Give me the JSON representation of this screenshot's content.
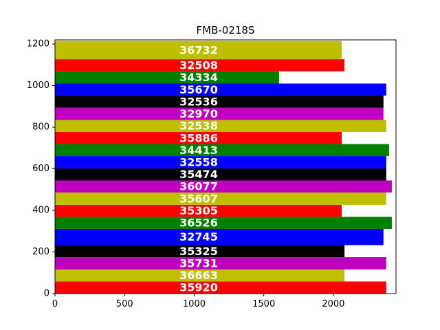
{
  "chart_data": {
    "type": "bar",
    "orientation": "horizontal",
    "title": "FMB-0218S",
    "xlabel": "",
    "ylabel": "",
    "xlim": [
      0,
      2450
    ],
    "ylim": [
      0,
      1220
    ],
    "xticks": [
      0,
      500,
      1000,
      1500,
      2000
    ],
    "yticks": [
      0,
      200,
      400,
      600,
      800,
      1000,
      1200
    ],
    "grid": false,
    "bars": [
      {
        "y_start": 0,
        "y_end": 58,
        "value": 2380,
        "color": "#ff0000",
        "label": "35920"
      },
      {
        "y_start": 58,
        "y_end": 116,
        "value": 2080,
        "color": "#bfbf00",
        "label": "36663"
      },
      {
        "y_start": 116,
        "y_end": 175,
        "value": 2380,
        "color": "#bf00bf",
        "label": "35731"
      },
      {
        "y_start": 175,
        "y_end": 233,
        "value": 2080,
        "color": "#000000",
        "label": "35325"
      },
      {
        "y_start": 233,
        "y_end": 311,
        "value": 2360,
        "color": "#0000ff",
        "label": "32745"
      },
      {
        "y_start": 311,
        "y_end": 369,
        "value": 2420,
        "color": "#008000",
        "label": "36526"
      },
      {
        "y_start": 369,
        "y_end": 427,
        "value": 2060,
        "color": "#ff0000",
        "label": "35305"
      },
      {
        "y_start": 427,
        "y_end": 486,
        "value": 2380,
        "color": "#bfbf00",
        "label": "35607"
      },
      {
        "y_start": 486,
        "y_end": 544,
        "value": 2420,
        "color": "#bf00bf",
        "label": "36077"
      },
      {
        "y_start": 544,
        "y_end": 602,
        "value": 2380,
        "color": "#000000",
        "label": "35474"
      },
      {
        "y_start": 602,
        "y_end": 661,
        "value": 2380,
        "color": "#0000ff",
        "label": "32558"
      },
      {
        "y_start": 661,
        "y_end": 719,
        "value": 2400,
        "color": "#008000",
        "label": "34413"
      },
      {
        "y_start": 719,
        "y_end": 777,
        "value": 2060,
        "color": "#ff0000",
        "label": "35886"
      },
      {
        "y_start": 777,
        "y_end": 835,
        "value": 2380,
        "color": "#bfbf00",
        "label": "32538"
      },
      {
        "y_start": 835,
        "y_end": 894,
        "value": 2360,
        "color": "#bf00bf",
        "label": "32970"
      },
      {
        "y_start": 894,
        "y_end": 952,
        "value": 2360,
        "color": "#000000",
        "label": "32536"
      },
      {
        "y_start": 952,
        "y_end": 1010,
        "value": 2380,
        "color": "#0000ff",
        "label": "35670"
      },
      {
        "y_start": 1010,
        "y_end": 1069,
        "value": 1610,
        "color": "#008000",
        "label": "34334"
      },
      {
        "y_start": 1069,
        "y_end": 1127,
        "value": 2080,
        "color": "#ff0000",
        "label": "32508"
      },
      {
        "y_start": 1127,
        "y_end": 1215,
        "value": 2060,
        "color": "#bfbf00",
        "label": "36732"
      }
    ]
  }
}
